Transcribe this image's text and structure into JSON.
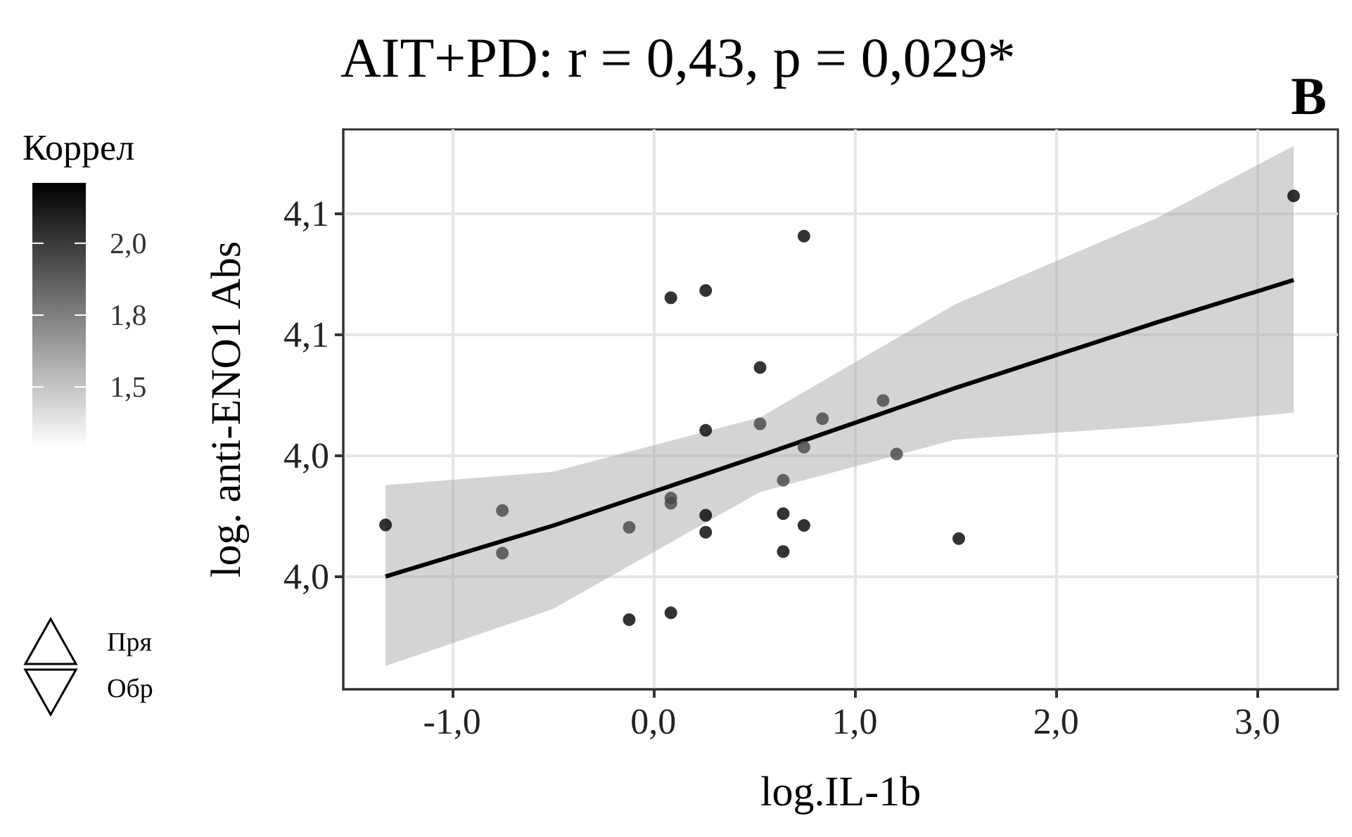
{
  "chart_data": {
    "type": "scatter",
    "title": "AIT+PD: r = 0,43, p = 0,029*",
    "xlabel": "log.IL-1b",
    "ylabel": "log. anti-ENO1 Abs",
    "clabel": "Коррел",
    "annotations": [
      "B",
      "Пря",
      "Обр"
    ],
    "xlim": [
      -1.54,
      3.4
    ],
    "xticks": [
      {
        "value": -1,
        "label": "-1,0"
      },
      {
        "value": 0,
        "label": "0,0"
      },
      {
        "value": 1,
        "label": "1,0"
      },
      {
        "value": 2,
        "label": "2,0"
      },
      {
        "value": 3,
        "label": "3,0"
      }
    ],
    "ylim": [
      3.972,
      4.111
    ],
    "yticks": [
      {
        "value": 4.0,
        "label": "4,0"
      },
      {
        "value": 4.03,
        "label": "4,0"
      },
      {
        "value": 4.06,
        "label": "4,1"
      },
      {
        "value": 4.09,
        "label": "4,1"
      }
    ],
    "clim": [
      1.29,
      2.21
    ],
    "cticks": [
      {
        "value": 1.5,
        "label": "1,5"
      },
      {
        "value": 1.75,
        "label": "1,8"
      },
      {
        "value": 2.0,
        "label": "2,0"
      }
    ],
    "grid": true,
    "series": [
      {
        "marker": "circle",
        "x": [
          -1.33,
          -0.75,
          -0.75,
          -0.12,
          -0.12,
          0.087,
          0.087,
          0.087,
          0.087,
          0.26,
          0.26,
          0.26,
          0.26,
          0.53,
          0.53,
          0.645,
          0.645,
          0.645,
          0.748,
          0.748,
          0.748,
          0.84,
          1.141,
          1.208,
          1.517,
          3.18
        ],
        "values": [
          4.0128,
          4.0164,
          4.0058,
          4.0122,
          3.9893,
          4.0692,
          4.0195,
          4.0182,
          3.991,
          4.071,
          4.0363,
          4.0152,
          4.011,
          4.0519,
          4.0379,
          4.0239,
          4.0156,
          4.0062,
          4.0845,
          4.0321,
          4.0127,
          4.0392,
          4.0437,
          4.0304,
          4.0094,
          4.0945
        ],
        "colors": [
          "#000000",
          "#454545",
          "#454545",
          "#454545",
          "#000000",
          "#000000",
          "#454545",
          "#454545",
          "#000000",
          "#000000",
          "#000000",
          "#000000",
          "#000000",
          "#000000",
          "#454545",
          "#454545",
          "#000000",
          "#000000",
          "#000000",
          "#454545",
          "#000000",
          "#454545",
          "#454545",
          "#454545",
          "#000000",
          "#000000"
        ]
      },
      {
        "type": "line",
        "marker": "none",
        "color": "#000000",
        "x": [
          -1.33,
          -0.5,
          0.53,
          1.5,
          2.5,
          3.18
        ],
        "values": [
          4.0,
          4.0126,
          4.03,
          4.0468,
          4.0631,
          4.0736
        ],
        "lower": [
          3.9778,
          3.9919,
          4.021,
          4.034,
          4.0374,
          4.0407
        ],
        "upper": [
          4.0227,
          4.026,
          4.0395,
          4.0676,
          4.089,
          4.1069
        ]
      }
    ]
  }
}
